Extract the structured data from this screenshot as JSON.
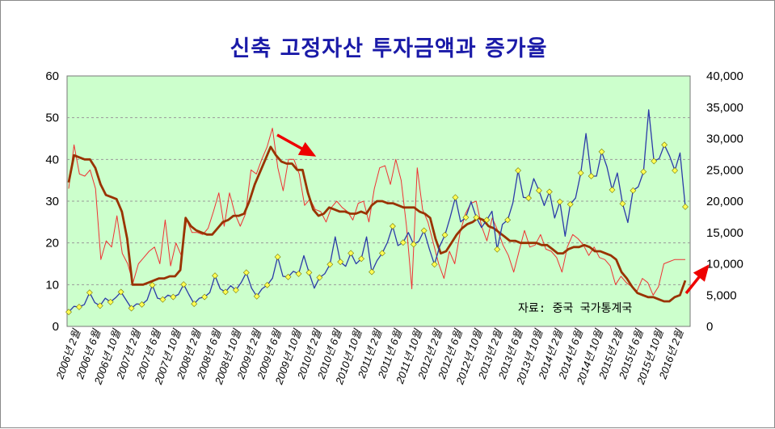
{
  "chart_data": {
    "type": "line",
    "title": "신축 고정자산 투자금액과 증가율",
    "source": "자료: 중국 국가통계국",
    "left_axis": {
      "ylim": [
        0,
        60
      ],
      "ticks": [
        "0",
        "10",
        "20",
        "30",
        "40",
        "50",
        "60"
      ]
    },
    "right_axis": {
      "ylim": [
        0,
        40000
      ],
      "ticks": [
        "0",
        "5,000",
        "10,000",
        "15,000",
        "20,000",
        "25,000",
        "30,000",
        "35,000",
        "40,000"
      ]
    },
    "x_tick_labels": [
      "2006년 2월",
      "2006년 6월",
      "2006년 10월",
      "2007년 2월",
      "2007년 6월",
      "2007년 10월",
      "2008년 2월",
      "2008년 6월",
      "2008년 10월",
      "2009년 2월",
      "2009년 6월",
      "2009년 10월",
      "2010년 2월",
      "2010년 6월",
      "2010년 10월",
      "2011년 2월",
      "2011년 6월",
      "2011년 10월",
      "2012년 2월",
      "2012년 6월",
      "2012년 10월",
      "2013년 2월",
      "2013년 6월",
      "2013년 10월",
      "2014년 2월",
      "2014년 6월",
      "2014년 10월",
      "2015년 2월",
      "2015년 6월",
      "2015년 10월",
      "2016년 2월"
    ],
    "grid": true,
    "background_color": "#ccffcc",
    "series": [
      {
        "axis": "right",
        "color": "#2b3aa8",
        "marker_color": "#ffff55",
        "values": [
          2300,
          3200,
          3100,
          3500,
          5400,
          3800,
          3300,
          4500,
          3900,
          4600,
          5500,
          4200,
          2900,
          3600,
          3500,
          4200,
          6600,
          4500,
          4300,
          5000,
          4700,
          5100,
          6700,
          5100,
          3600,
          4500,
          4700,
          5400,
          8100,
          6000,
          5500,
          6500,
          5800,
          7000,
          8600,
          6100,
          4800,
          6000,
          6600,
          7700,
          11100,
          8000,
          7900,
          8800,
          8400,
          11300,
          8600,
          6100,
          7800,
          8400,
          9900,
          14300,
          10300,
          9600,
          11700,
          10000,
          10800,
          14300,
          8700,
          10500,
          11700,
          13400,
          16000,
          12900,
          13400,
          15000,
          13100,
          13600,
          15300,
          12400,
          9900,
          12800,
          14600,
          17400,
          20600,
          16700,
          17400,
          19900,
          17400,
          15800,
          17000,
          18400,
          12300,
          16300,
          17000,
          19700,
          24900,
          20600,
          20500,
          23600,
          21700,
          19300,
          21500,
          17300,
          19900,
          14400,
          19500,
          20500,
          24500,
          30800,
          24000,
          24000,
          27900,
          25500,
          21800,
          24500,
          19600,
          16600,
          21700,
          22300,
          24700,
          34600,
          26400,
          26800,
          29000,
          27200,
          24900,
          27700,
          19100
        ]
      },
      {
        "axis": "left",
        "color": "#ee3333",
        "values": [
          33.0,
          43.5,
          36.5,
          36.0,
          37.5,
          33.0,
          16.0,
          20.5,
          19.0,
          26.5,
          17.5,
          15.0,
          10.5,
          15.0,
          16.5,
          18.0,
          19.0,
          15.0,
          25.5,
          14.5,
          20.0,
          17.0,
          25.5,
          22.5,
          22.5,
          22.0,
          23.5,
          27.5,
          32.0,
          24.0,
          32.0,
          27.0,
          24.0,
          27.0,
          37.5,
          36.5,
          40.0,
          43.0,
          47.5,
          38.0,
          32.5,
          40.0,
          40.0,
          36.5,
          29.0,
          30.5,
          28.0,
          27.5,
          25.0,
          28.5,
          30.0,
          28.5,
          27.5,
          25.5,
          29.5,
          30.0,
          25.0,
          33.0,
          38.0,
          38.5,
          34.0,
          40.0,
          35.0,
          24.0,
          9.0,
          38.0,
          28.0,
          25.0,
          20.0,
          15.0,
          11.5,
          18.0,
          15.0,
          22.5,
          27.0,
          29.5,
          30.0,
          24.0,
          20.5,
          26.0,
          23.0,
          19.5,
          17.0,
          13.0,
          18.0,
          23.0,
          19.0,
          19.5,
          22.0,
          18.5,
          18.0,
          16.5,
          13.0,
          19.0,
          22.0,
          21.0,
          19.5,
          17.0,
          19.0,
          16.5,
          16.0,
          14.5,
          10.0,
          12.0,
          10.5,
          9.5,
          8.5,
          11.5,
          10.5,
          7.5,
          9.5,
          15.0,
          15.5,
          16.0,
          16.0,
          16.0
        ]
      },
      {
        "axis": "left",
        "color": "#993300",
        "values": [
          34.5,
          41.0,
          40.5,
          40.0,
          40.0,
          38.0,
          34.0,
          31.5,
          31.0,
          30.5,
          27.5,
          21.0,
          10.0,
          10.0,
          10.0,
          10.5,
          11.0,
          11.5,
          11.5,
          12.0,
          12.0,
          13.5,
          26.0,
          24.0,
          23.0,
          22.5,
          22.0,
          22.0,
          23.5,
          25.0,
          25.5,
          26.5,
          26.5,
          27.0,
          30.0,
          34.0,
          37.0,
          40.0,
          43.0,
          41.0,
          39.5,
          39.0,
          39.0,
          37.5,
          37.5,
          32.0,
          28.0,
          26.5,
          27.0,
          28.5,
          28.0,
          27.5,
          27.5,
          27.0,
          27.0,
          27.5,
          27.0,
          29.0,
          30.0,
          30.0,
          29.5,
          29.5,
          29.0,
          28.5,
          28.5,
          28.5,
          27.5,
          27.0,
          26.0,
          21.0,
          17.5,
          18.0,
          20.0,
          22.0,
          23.5,
          24.5,
          25.0,
          26.0,
          25.5,
          24.0,
          23.5,
          22.5,
          21.5,
          20.5,
          20.5,
          20.0,
          20.0,
          20.0,
          20.0,
          19.5,
          19.5,
          18.5,
          17.5,
          17.5,
          18.5,
          19.0,
          19.0,
          19.5,
          19.0,
          18.0,
          18.0,
          17.5,
          17.0,
          16.0,
          13.0,
          11.5,
          9.5,
          8.0,
          7.5,
          7.0,
          7.0,
          6.5,
          6.0,
          6.0,
          7.0,
          7.5,
          11.0
        ]
      }
    ],
    "annotations": [
      {
        "type": "arrow",
        "color": "#ee0000",
        "direction": "down-right"
      },
      {
        "type": "arrow",
        "color": "#ee0000",
        "direction": "up-right"
      }
    ]
  }
}
